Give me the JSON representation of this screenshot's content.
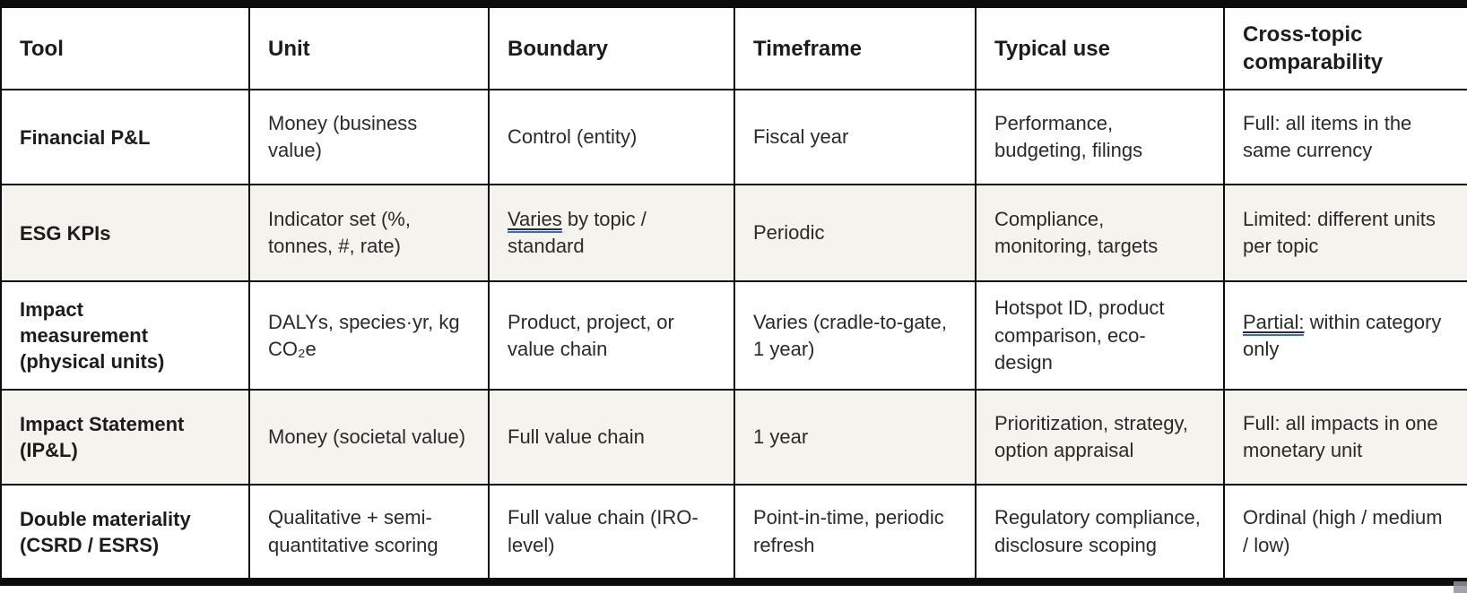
{
  "colors": {
    "highlight_underline": "#2e6be0",
    "row_stripe": "#f5f3ee",
    "border": "#0c0c0c"
  },
  "table": {
    "columns": [
      "Tool",
      "Unit",
      "Boundary",
      "Timeframe",
      "Typical use",
      "Cross-topic comparability"
    ],
    "rows": [
      {
        "tool": "Financial P&L",
        "unit": "Money (business value)",
        "boundary": "Control (entity)",
        "timeframe": "Fiscal year",
        "typical_use": "Performance, budgeting, filings",
        "comparability": "Full: all items in the same currency"
      },
      {
        "tool": "ESG KPIs",
        "unit": "Indicator set (%, tonnes, #, rate)",
        "boundary_highlight": "Varies",
        "boundary_rest": " by topic / standard",
        "timeframe": "Periodic",
        "typical_use": "Compliance, monitoring, targets",
        "comparability": "Limited: different units per topic"
      },
      {
        "tool": "Impact measurement (physical units)",
        "unit": "DALYs, species·yr, kg CO₂e",
        "boundary": "Product, project, or value chain",
        "timeframe": "Varies (cradle-to-gate, 1 year)",
        "typical_use": "Hotspot ID, product comparison, eco-design",
        "comparability_highlight": "Partial:",
        "comparability_rest": " within category only"
      },
      {
        "tool": "Impact Statement (IP&L)",
        "unit": "Money (societal value)",
        "boundary": "Full value chain",
        "timeframe": "1 year",
        "typical_use": "Prioritization, strategy, option appraisal",
        "comparability": "Full: all impacts in one monetary unit"
      },
      {
        "tool": "Double materiality (CSRD / ESRS)",
        "unit": "Qualitative + semi-quantitative scoring",
        "boundary": "Full value chain (IRO-level)",
        "timeframe": "Point-in-time, periodic refresh",
        "typical_use": "Regulatory compliance, disclosure scoping",
        "comparability": "Ordinal (high / medium / low)"
      }
    ]
  }
}
